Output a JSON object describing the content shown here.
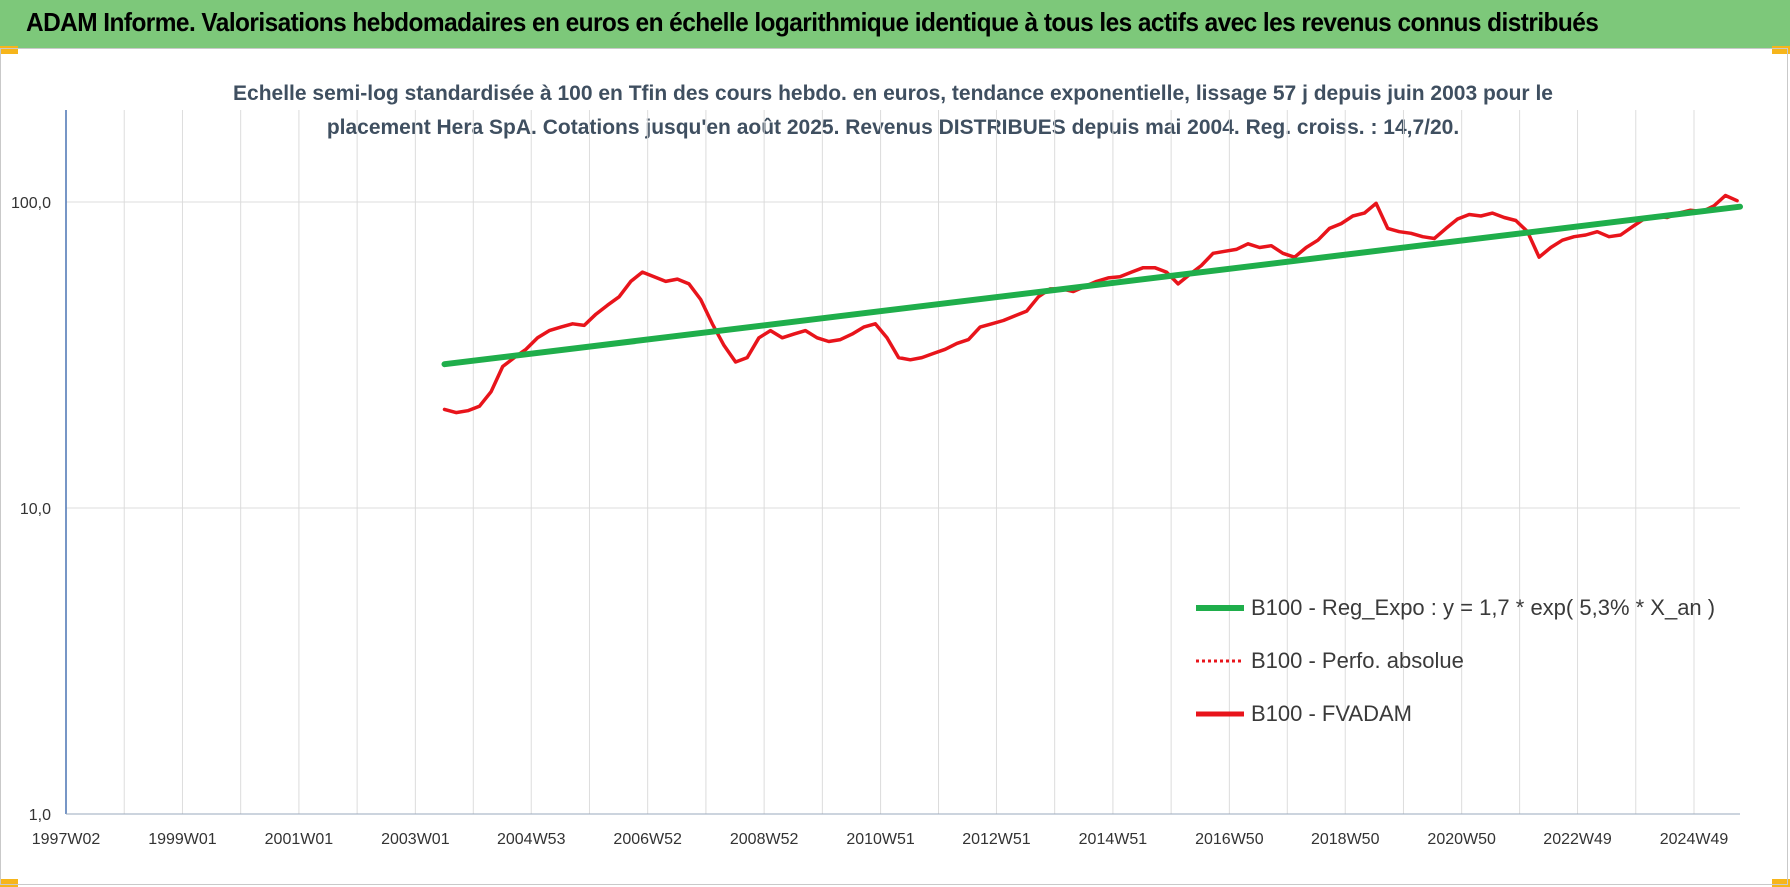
{
  "banner": {
    "title": "ADAM Informe. Valorisations hebdomadaires en euros en échelle logarithmique identique à tous les actifs avec les revenus connus distribués"
  },
  "colors": {
    "banner": "#7dc87a",
    "corner": "#f6b51b",
    "trend": "#1fae4b",
    "fvadam": "#e8141b",
    "grid": "#dcdcdc",
    "axis": "#4a74b4",
    "title_text": "#3f4f60"
  },
  "chart_data": {
    "type": "line",
    "title_lines": [
      "Echelle semi-log standardisée à 100 en Tfin des cours hebdo. en euros, tendance exponentielle, lissage 57 j depuis juin 2003 pour le",
      "placement Hera SpA. Cotations jusqu'en août 2025. Revenus DISTRIBUES depuis mai 2004. Reg. croiss. : 14,7/20."
    ],
    "y_scale": "log",
    "ylim": [
      1,
      200
    ],
    "y_ticks": [
      1,
      10,
      100
    ],
    "y_tick_labels": [
      "1,0",
      "10,0",
      "100,0"
    ],
    "xlim": [
      1997.0,
      2025.75
    ],
    "x_ticks": [
      1997.0,
      1999.0,
      2001.0,
      2003.0,
      2004.99,
      2006.99,
      2008.99,
      2010.99,
      2012.98,
      2014.98,
      2016.98,
      2018.97,
      2020.97,
      2022.96,
      2024.96
    ],
    "x_tick_labels": [
      "1997W02",
      "1999W01",
      "2001W01",
      "2003W01",
      "2004W53",
      "2006W52",
      "2008W52",
      "2010W51",
      "2012W51",
      "2014W51",
      "2016W50",
      "2018W50",
      "2020W50",
      "2022W49",
      "2024W49"
    ],
    "grid": true,
    "legend_position": "bottom-right",
    "series": [
      {
        "name": "B100 - Reg_Expo : y = 1,7 * exp( 5,3% *  X_an )",
        "style": "solid-thick",
        "x": [
          2003.5,
          2025.75
        ],
        "y": [
          29.5,
          96.5
        ]
      },
      {
        "name": "B100 - Perfo. absolue",
        "style": "dotted",
        "x": [],
        "y": []
      },
      {
        "name": "B100 - FVADAM",
        "style": "solid",
        "x": [
          2003.5,
          2003.7,
          2003.9,
          2004.1,
          2004.3,
          2004.5,
          2004.7,
          2004.9,
          2005.1,
          2005.3,
          2005.5,
          2005.7,
          2005.9,
          2006.1,
          2006.3,
          2006.5,
          2006.7,
          2006.9,
          2007.1,
          2007.3,
          2007.5,
          2007.7,
          2007.9,
          2008.1,
          2008.3,
          2008.5,
          2008.7,
          2008.9,
          2009.1,
          2009.3,
          2009.5,
          2009.7,
          2009.9,
          2010.1,
          2010.3,
          2010.5,
          2010.7,
          2010.9,
          2011.1,
          2011.3,
          2011.5,
          2011.7,
          2011.9,
          2012.1,
          2012.3,
          2012.5,
          2012.7,
          2012.9,
          2013.1,
          2013.3,
          2013.5,
          2013.7,
          2013.9,
          2014.1,
          2014.3,
          2014.5,
          2014.7,
          2014.9,
          2015.1,
          2015.3,
          2015.5,
          2015.7,
          2015.9,
          2016.1,
          2016.3,
          2016.5,
          2016.7,
          2016.9,
          2017.1,
          2017.3,
          2017.5,
          2017.7,
          2017.9,
          2018.1,
          2018.3,
          2018.5,
          2018.7,
          2018.9,
          2019.1,
          2019.3,
          2019.5,
          2019.7,
          2019.9,
          2020.1,
          2020.3,
          2020.5,
          2020.7,
          2020.9,
          2021.1,
          2021.3,
          2021.5,
          2021.7,
          2021.9,
          2022.1,
          2022.3,
          2022.5,
          2022.7,
          2022.9,
          2023.1,
          2023.3,
          2023.5,
          2023.7,
          2023.9,
          2024.1,
          2024.3,
          2024.5,
          2024.7,
          2024.9,
          2025.1,
          2025.3,
          2025.5,
          2025.7
        ],
        "y": [
          21,
          20.5,
          20.8,
          21.5,
          24,
          29,
          31,
          33,
          36,
          38,
          39,
          40,
          39.5,
          43,
          46,
          49,
          55,
          59,
          57,
          55,
          56,
          54,
          48,
          40,
          34,
          30,
          31,
          36,
          38,
          36,
          37,
          38,
          36,
          35,
          35.5,
          37,
          39,
          40,
          36,
          31,
          30.5,
          31,
          32,
          33,
          34.5,
          35.5,
          39,
          40,
          41,
          42.5,
          44,
          49,
          52,
          52,
          51,
          53,
          55,
          56.5,
          57,
          59,
          61,
          61,
          59,
          54,
          58,
          62,
          68,
          69,
          70,
          73,
          71,
          72,
          68,
          66,
          71,
          75,
          82,
          85,
          90,
          92,
          99,
          82,
          80,
          79,
          77,
          76,
          82,
          88,
          91,
          90,
          92,
          89,
          87,
          80,
          66,
          71,
          75,
          77,
          78,
          80,
          77,
          78,
          83,
          88,
          90,
          89,
          92,
          94,
          93,
          97,
          105,
          101
        ]
      }
    ]
  }
}
